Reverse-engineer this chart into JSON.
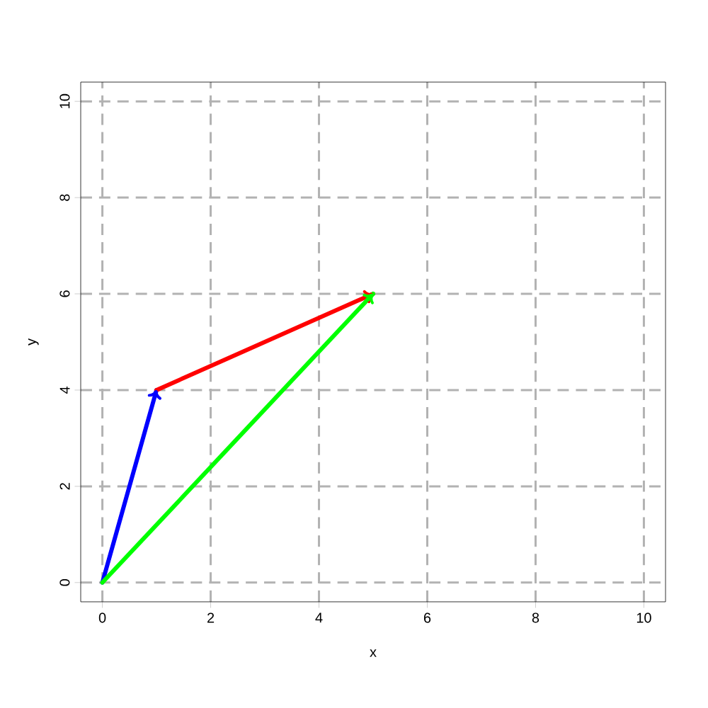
{
  "chart_data": {
    "type": "line",
    "xlabel": "x",
    "ylabel": "y",
    "xlim": [
      -0.4,
      10.4
    ],
    "ylim": [
      -0.4,
      10.4
    ],
    "xticks": [
      0,
      2,
      4,
      6,
      8,
      10
    ],
    "yticks": [
      0,
      2,
      4,
      6,
      8,
      10
    ],
    "grid": true,
    "series": [
      {
        "color": "#0000ff",
        "x": [
          0,
          1
        ],
        "values": [
          0,
          4
        ]
      },
      {
        "color": "#ff0000",
        "x": [
          1,
          5
        ],
        "values": [
          4,
          6
        ]
      },
      {
        "color": "#00ff00",
        "x": [
          0,
          5
        ],
        "values": [
          0,
          6
        ]
      }
    ]
  }
}
